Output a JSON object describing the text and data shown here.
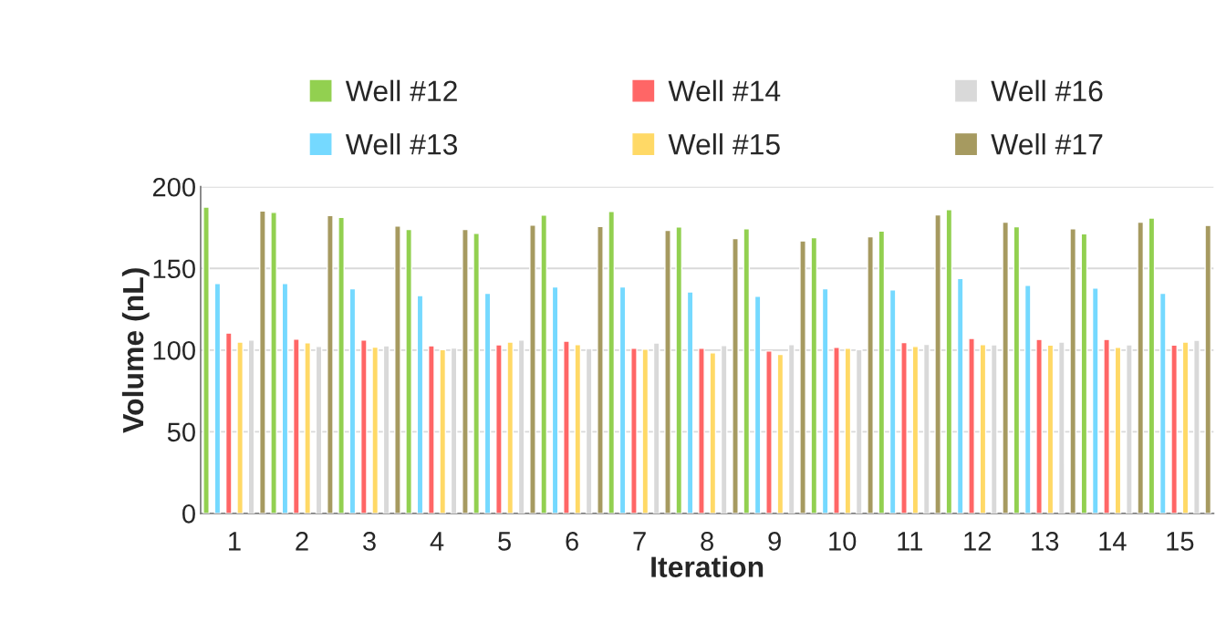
{
  "chart_data": {
    "type": "bar",
    "xlabel": "Iteration",
    "ylabel": "Volume (nL)",
    "categories": [
      "1",
      "2",
      "3",
      "4",
      "5",
      "6",
      "7",
      "8",
      "9",
      "10",
      "11",
      "12",
      "13",
      "14",
      "15"
    ],
    "series": [
      {
        "name": "Well #12",
        "color": "#92d050",
        "values": [
          187.5,
          184.3,
          181.3,
          173.9,
          171.5,
          182.6,
          184.9,
          175.4,
          174.3,
          168.8,
          172.9,
          186.0,
          175.5,
          171.2,
          180.8
        ]
      },
      {
        "name": "Well #13",
        "color": "#75d9ff",
        "values": [
          140.8,
          140.8,
          137.5,
          133.4,
          134.7,
          138.6,
          138.6,
          135.6,
          133.0,
          137.5,
          136.9,
          143.8,
          139.6,
          137.9,
          134.7
        ]
      },
      {
        "name": "Well #14",
        "color": "#ff6666",
        "values": [
          110.4,
          106.7,
          106.2,
          102.6,
          103.2,
          105.4,
          101.1,
          101.1,
          99.4,
          101.7,
          104.6,
          107.1,
          106.5,
          106.5,
          103.0
        ]
      },
      {
        "name": "Well #15",
        "color": "#ffd966",
        "values": [
          104.9,
          104.5,
          101.8,
          100.2,
          104.9,
          103.4,
          100.6,
          98.3,
          97.4,
          101.1,
          102.2,
          103.4,
          103.0,
          101.7,
          104.9
        ]
      },
      {
        "name": "Well #16",
        "color": "#d9d9d9",
        "values": [
          106.2,
          102.2,
          102.6,
          101.3,
          106.2,
          100.9,
          104.3,
          102.8,
          103.4,
          100.2,
          103.5,
          103.2,
          104.9,
          103.2,
          106.0
        ]
      },
      {
        "name": "Well #17",
        "color": "#a69a60",
        "values": [
          185.1,
          182.3,
          175.9,
          173.9,
          176.5,
          175.7,
          173.3,
          168.3,
          166.8,
          169.4,
          182.8,
          178.3,
          174.3,
          178.3,
          176.3
        ]
      }
    ],
    "ylim": [
      0,
      200
    ],
    "yticks": [
      0,
      50,
      100,
      150,
      200
    ],
    "grid": "y",
    "legend": "top"
  }
}
